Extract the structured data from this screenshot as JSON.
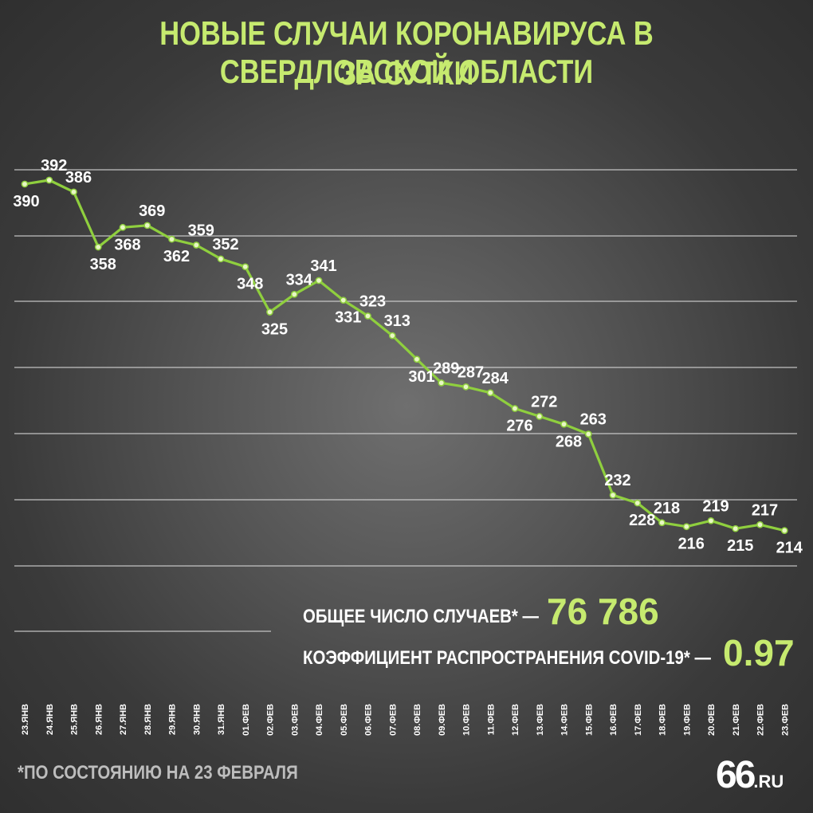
{
  "title_line1": "НОВЫЕ СЛУЧАИ КОРОНАВИРУСА В СВЕРДЛОВСКОЙ ОБЛАСТИ",
  "title_line2": "ЗА СУТКИ",
  "stats": {
    "total_label": "ОБЩЕЕ ЧИСЛО СЛУЧАЕВ* —",
    "total_value": "76 786",
    "coef_label": "КОЭФФИЦИЕНТ РАСПРОСТРАНЕНИЯ COVID-19* —",
    "coef_value": "0.97"
  },
  "footnote": "*ПО СОСТОЯНИЮ НА 23 ФЕВРАЛЯ",
  "logo": {
    "number": "66",
    "suffix": ".RU"
  },
  "colors": {
    "accent": "#c6ea6f",
    "line": "#8fcf3e",
    "grid": "#d9d9d9"
  },
  "chart_data": {
    "type": "line",
    "title": "НОВЫЕ СЛУЧАИ КОРОНАВИРУСА В СВЕРДЛОВСКОЙ ОБЛАСТИ ЗА СУТКИ",
    "grid": true,
    "categories": [
      "23.ЯНВ",
      "24.ЯНВ",
      "25.ЯНВ",
      "26.ЯНВ",
      "27.ЯНВ",
      "28.ЯНВ",
      "29.ЯНВ",
      "30.ЯНВ",
      "31.ЯНВ",
      "01.ФЕВ",
      "02.ФЕВ",
      "03.ФЕВ",
      "04.ФЕВ",
      "05.ФЕВ",
      "06.ФЕВ",
      "07.ФЕВ",
      "08.ФЕВ",
      "09.ФЕВ",
      "10.ФЕВ",
      "11.ФЕВ",
      "12.ФЕВ",
      "13.ФЕВ",
      "14.ФЕВ",
      "15.ФЕВ",
      "16.ФЕВ",
      "17.ФЕВ",
      "18.ФЕВ",
      "19.ФЕВ",
      "20.ФЕВ",
      "21.ФЕВ",
      "22.ФЕВ",
      "23.ФЕВ"
    ],
    "values": [
      390,
      392,
      386,
      358,
      368,
      369,
      362,
      359,
      352,
      348,
      325,
      334,
      341,
      331,
      323,
      313,
      301,
      289,
      287,
      284,
      276,
      272,
      268,
      263,
      232,
      228,
      218,
      216,
      219,
      215,
      217,
      214
    ],
    "label_side": [
      "below",
      "above",
      "above",
      "below",
      "below",
      "above",
      "below",
      "above",
      "above",
      "below",
      "below",
      "above",
      "above",
      "below",
      "above",
      "above",
      "below",
      "above",
      "above",
      "above",
      "below",
      "above",
      "below",
      "above",
      "above",
      "below",
      "above",
      "below",
      "above",
      "below",
      "above",
      "below"
    ]
  }
}
